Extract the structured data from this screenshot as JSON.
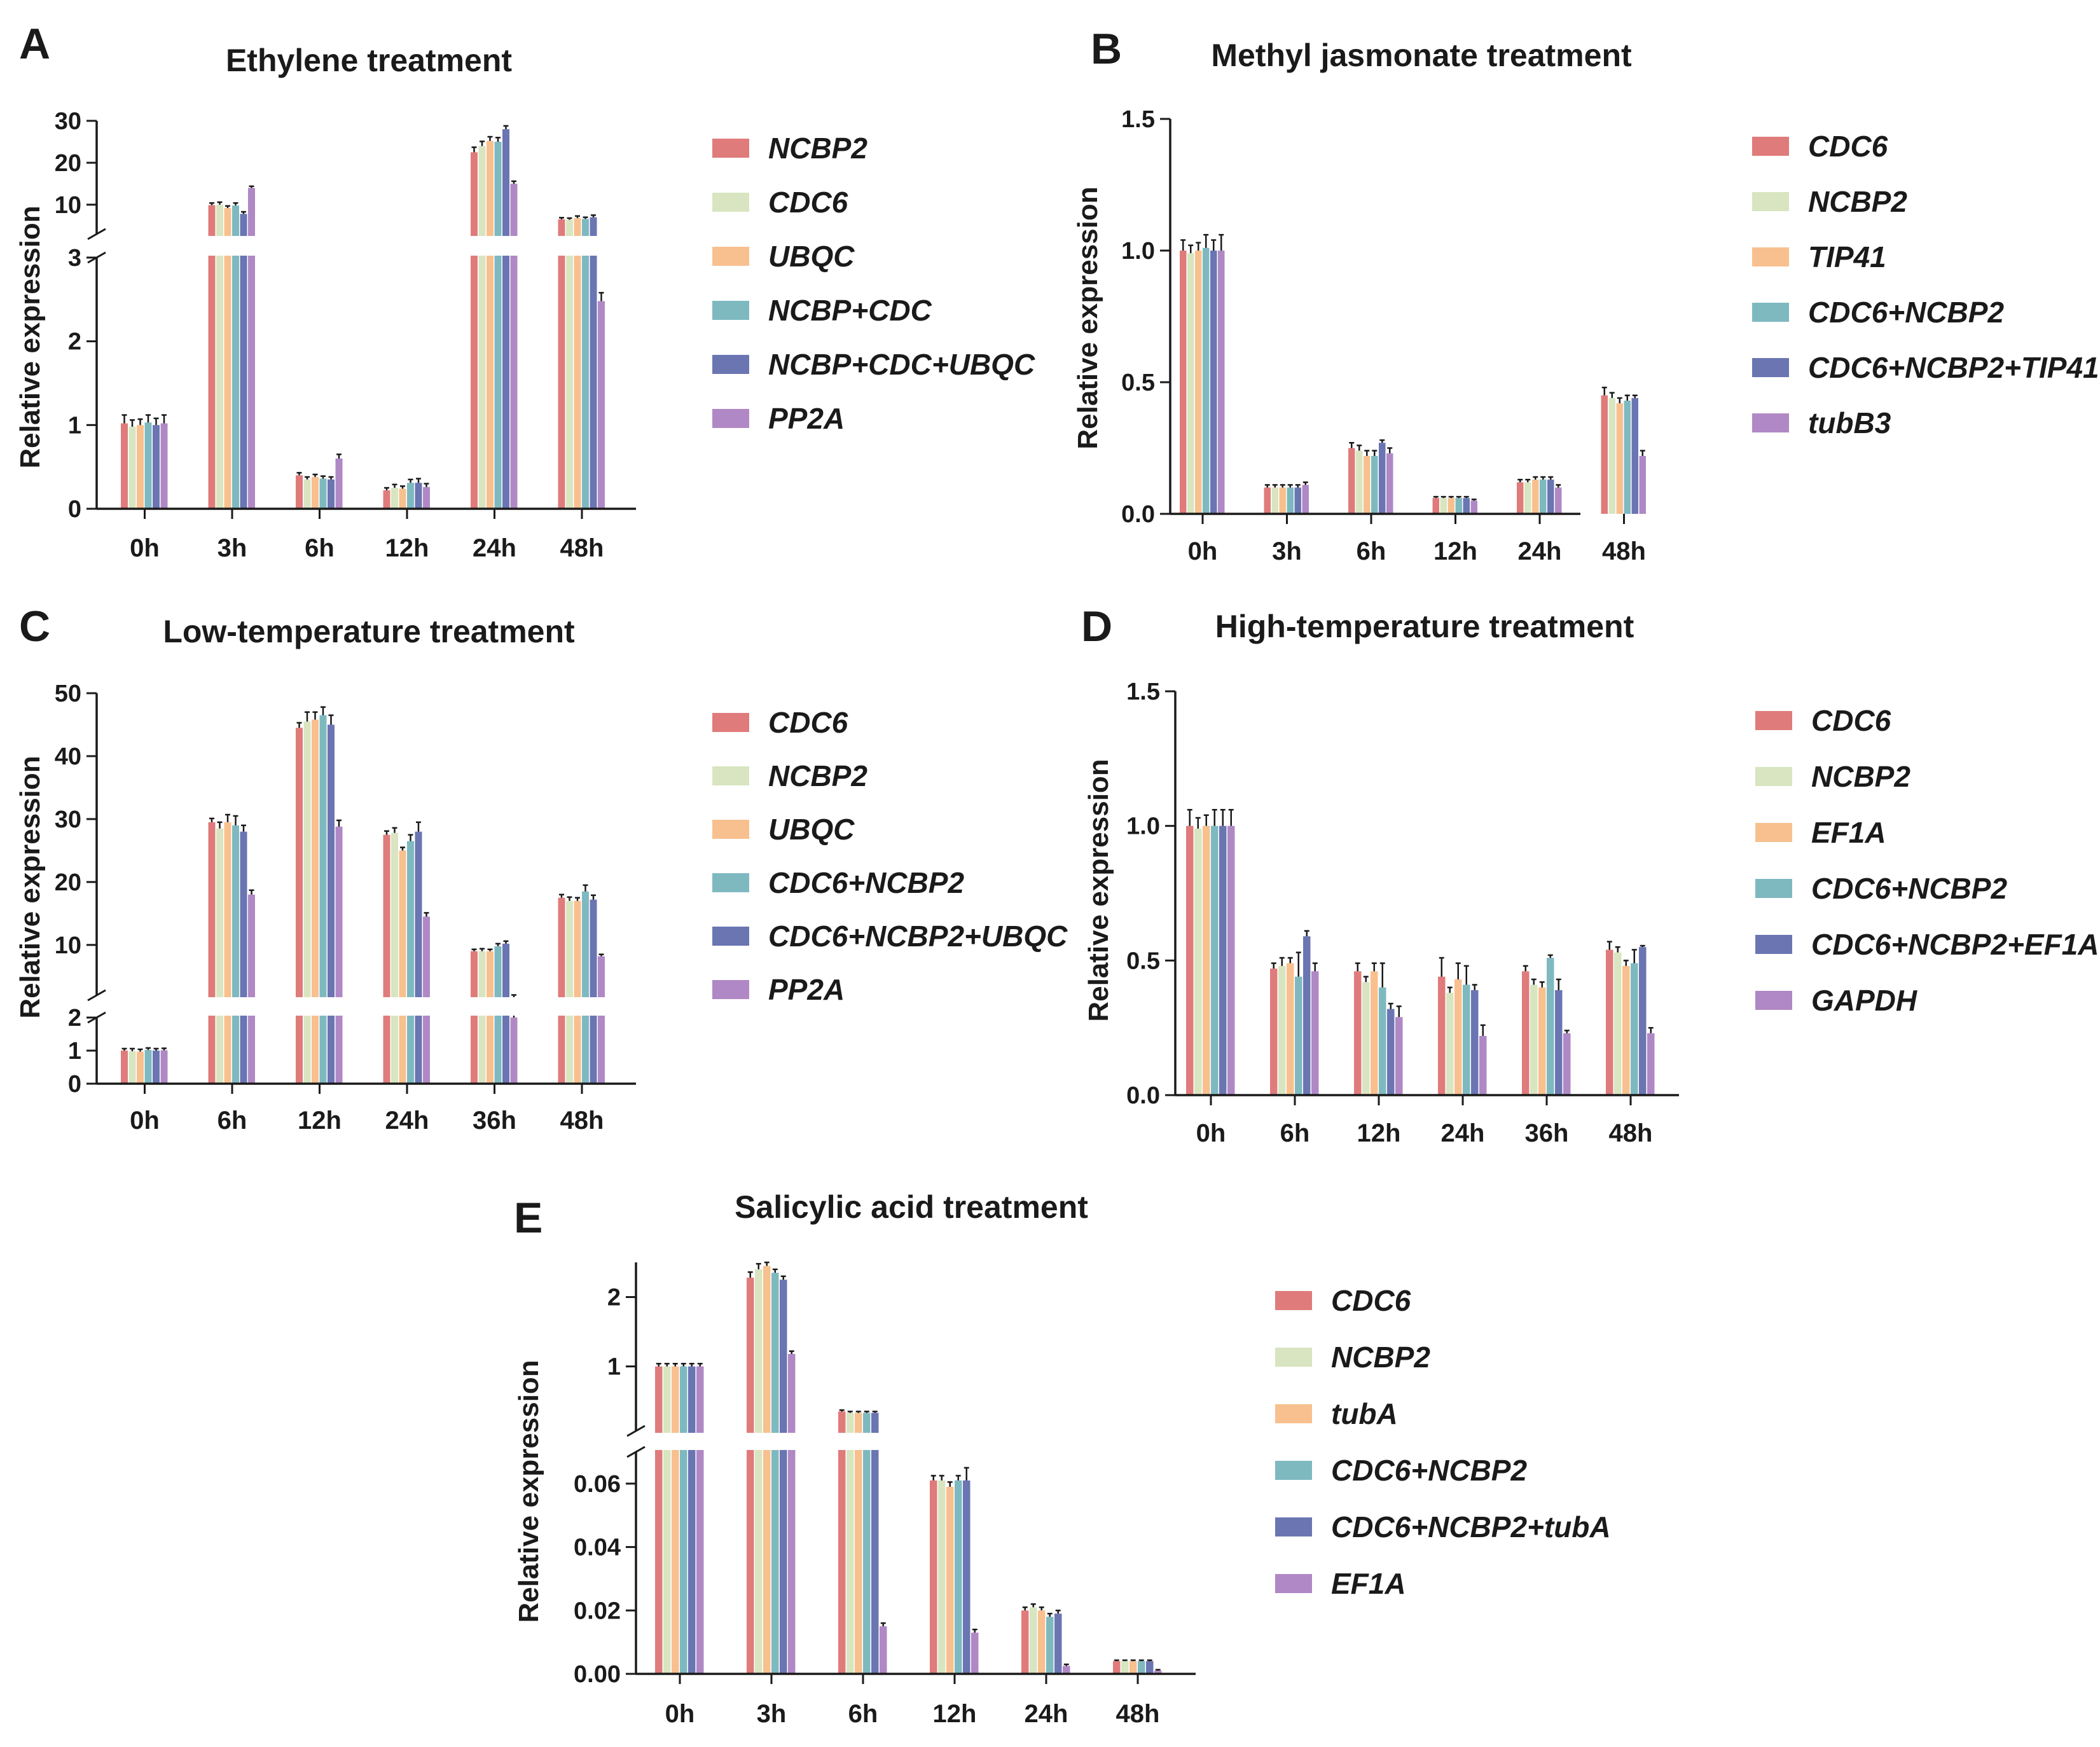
{
  "chart_data": [
    {
      "id": "A",
      "type": "bar",
      "panel_label": "A",
      "title": "Ethylene treatment",
      "xlabel": "",
      "ylabel": "Relative expression",
      "categories": [
        "0h",
        "3h",
        "6h",
        "12h",
        "24h",
        "48h"
      ],
      "broken_axis": {
        "lower": {
          "ylim": [
            0,
            3
          ],
          "ticks": [
            0,
            1,
            2,
            3
          ]
        },
        "upper": {
          "ylim": [
            3,
            30
          ],
          "ticks": [
            10,
            20,
            30
          ]
        }
      },
      "series": [
        {
          "name": "NCBP2",
          "color": "#E07B7B",
          "values": [
            1.02,
            9.9,
            0.4,
            0.22,
            22.5,
            6.5
          ],
          "errors": [
            0.1,
            0.5,
            0.03,
            0.03,
            1.2,
            0.4
          ]
        },
        {
          "name": "CDC6",
          "color": "#D8E5C0",
          "values": [
            0.98,
            10.0,
            0.35,
            0.25,
            24.0,
            6.4
          ],
          "errors": [
            0.08,
            0.6,
            0.03,
            0.04,
            1.1,
            0.4
          ]
        },
        {
          "name": "UBQC",
          "color": "#F8C08E",
          "values": [
            1.0,
            9.2,
            0.38,
            0.24,
            25.2,
            6.8
          ],
          "errors": [
            0.07,
            0.5,
            0.03,
            0.03,
            1.0,
            0.5
          ]
        },
        {
          "name": "NCBP+CDC",
          "color": "#7EB9C0",
          "values": [
            1.03,
            9.8,
            0.36,
            0.31,
            25.0,
            6.6
          ],
          "errors": [
            0.09,
            0.6,
            0.03,
            0.04,
            1.0,
            0.4
          ]
        },
        {
          "name": "NCBP+CDC+UBQC",
          "color": "#6A75B2",
          "values": [
            1.0,
            7.8,
            0.35,
            0.31,
            28.0,
            7.0
          ],
          "errors": [
            0.08,
            0.5,
            0.03,
            0.05,
            0.8,
            0.5
          ]
        },
        {
          "name": "PP2A",
          "color": "#B088C5",
          "values": [
            1.02,
            14.0,
            0.6,
            0.26,
            15.0,
            2.48
          ],
          "errors": [
            0.1,
            0.4,
            0.05,
            0.04,
            0.6,
            0.1
          ]
        }
      ]
    },
    {
      "id": "B",
      "type": "bar",
      "panel_label": "B",
      "title": "Methyl jasmonate treatment",
      "xlabel": "",
      "ylabel": "Relative expression",
      "categories": [
        "0h",
        "3h",
        "6h",
        "12h",
        "24h",
        "48h"
      ],
      "ylim": [
        0,
        1.5
      ],
      "yticks": [
        "0.0",
        "0.5",
        "1.0",
        "1.5"
      ],
      "series": [
        {
          "name": "CDC6",
          "color": "#E07B7B",
          "values": [
            1.0,
            0.1,
            0.25,
            0.06,
            0.12,
            0.45
          ],
          "errors": [
            0.04,
            0.01,
            0.02,
            0.005,
            0.01,
            0.03
          ]
        },
        {
          "name": "NCBP2",
          "color": "#D8E5C0",
          "values": [
            0.99,
            0.1,
            0.24,
            0.06,
            0.12,
            0.44
          ],
          "errors": [
            0.03,
            0.01,
            0.02,
            0.005,
            0.01,
            0.02
          ]
        },
        {
          "name": "TIP41",
          "color": "#F8C08E",
          "values": [
            1.0,
            0.1,
            0.22,
            0.06,
            0.13,
            0.42
          ],
          "errors": [
            0.03,
            0.01,
            0.02,
            0.005,
            0.01,
            0.02
          ]
        },
        {
          "name": "CDC6+NCBP2",
          "color": "#7EB9C0",
          "values": [
            1.01,
            0.1,
            0.22,
            0.06,
            0.13,
            0.43
          ],
          "errors": [
            0.05,
            0.01,
            0.02,
            0.005,
            0.01,
            0.02
          ]
        },
        {
          "name": "CDC6+NCBP2+TIP41",
          "color": "#6A75B2",
          "values": [
            1.0,
            0.1,
            0.27,
            0.06,
            0.13,
            0.44
          ],
          "errors": [
            0.04,
            0.01,
            0.01,
            0.005,
            0.01,
            0.01
          ]
        },
        {
          "name": "tubB3",
          "color": "#B088C5",
          "values": [
            1.0,
            0.11,
            0.23,
            0.05,
            0.1,
            0.22
          ],
          "errors": [
            0.06,
            0.01,
            0.02,
            0.005,
            0.01,
            0.02
          ]
        }
      ]
    },
    {
      "id": "C",
      "type": "bar",
      "panel_label": "C",
      "title": "Low-temperature treatment",
      "xlabel": "",
      "ylabel": "Relative expression",
      "categories": [
        "0h",
        "6h",
        "12h",
        "24h",
        "36h",
        "48h"
      ],
      "broken_axis": {
        "lower": {
          "ylim": [
            0,
            2
          ],
          "ticks": [
            0,
            1,
            2
          ]
        },
        "upper": {
          "ylim": [
            2,
            50
          ],
          "ticks": [
            10,
            20,
            30,
            40,
            50
          ]
        }
      },
      "series": [
        {
          "name": "CDC6",
          "color": "#E07B7B",
          "values": [
            1.0,
            29.5,
            44.5,
            27.5,
            9.0,
            17.5
          ],
          "errors": [
            0.06,
            0.6,
            0.8,
            0.6,
            0.3,
            0.5
          ]
        },
        {
          "name": "NCBP2",
          "color": "#D8E5C0",
          "values": [
            0.98,
            28.5,
            45.5,
            27.8,
            9.0,
            17.0
          ],
          "errors": [
            0.08,
            1.0,
            1.5,
            0.8,
            0.4,
            0.6
          ]
        },
        {
          "name": "UBQC",
          "color": "#F8C08E",
          "values": [
            0.97,
            29.5,
            45.8,
            25.0,
            9.0,
            17.0
          ],
          "errors": [
            0.07,
            1.2,
            1.2,
            0.5,
            0.3,
            0.5
          ]
        },
        {
          "name": "CDC6+NCBP2",
          "color": "#7EB9C0",
          "values": [
            1.02,
            29.0,
            46.5,
            26.5,
            9.8,
            18.5
          ],
          "errors": [
            0.06,
            1.5,
            1.3,
            1.0,
            0.4,
            1.0
          ]
        },
        {
          "name": "CDC6+NCBP2+UBQC",
          "color": "#6A75B2",
          "values": [
            1.0,
            28.0,
            45.0,
            28.0,
            10.2,
            17.2
          ],
          "errors": [
            0.06,
            1.0,
            1.5,
            1.5,
            0.4,
            0.7
          ]
        },
        {
          "name": "PP2A",
          "color": "#B088C5",
          "values": [
            1.01,
            18.0,
            28.8,
            14.5,
            2.0,
            8.2
          ],
          "errors": [
            0.06,
            0.7,
            1.0,
            0.6,
            0.05,
            0.3
          ]
        }
      ]
    },
    {
      "id": "D",
      "type": "bar",
      "panel_label": "D",
      "title": "High-temperature treatment",
      "xlabel": "",
      "ylabel": "Relative expression",
      "categories": [
        "0h",
        "6h",
        "12h",
        "24h",
        "36h",
        "48h"
      ],
      "ylim": [
        0,
        1.5
      ],
      "yticks": [
        "0.0",
        "0.5",
        "1.0",
        "1.5"
      ],
      "series": [
        {
          "name": "CDC6",
          "color": "#E07B7B",
          "values": [
            1.0,
            0.47,
            0.46,
            0.44,
            0.46,
            0.54
          ],
          "errors": [
            0.06,
            0.02,
            0.03,
            0.07,
            0.02,
            0.03
          ]
        },
        {
          "name": "NCBP2",
          "color": "#D8E5C0",
          "values": [
            0.99,
            0.48,
            0.42,
            0.38,
            0.41,
            0.53
          ],
          "errors": [
            0.04,
            0.03,
            0.02,
            0.02,
            0.02,
            0.02
          ]
        },
        {
          "name": "EF1A",
          "color": "#F8C08E",
          "values": [
            1.0,
            0.49,
            0.46,
            0.43,
            0.4,
            0.48
          ],
          "errors": [
            0.04,
            0.02,
            0.03,
            0.06,
            0.02,
            0.02
          ]
        },
        {
          "name": "CDC6+NCBP2",
          "color": "#7EB9C0",
          "values": [
            1.0,
            0.44,
            0.4,
            0.41,
            0.51,
            0.49
          ],
          "errors": [
            0.06,
            0.09,
            0.09,
            0.07,
            0.01,
            0.05
          ]
        },
        {
          "name": "CDC6+NCBP2+EF1A",
          "color": "#6A75B2",
          "values": [
            1.0,
            0.59,
            0.32,
            0.39,
            0.39,
            0.55
          ],
          "errors": [
            0.06,
            0.02,
            0.02,
            0.02,
            0.04,
            0.005
          ]
        },
        {
          "name": "GAPDH",
          "color": "#B088C5",
          "values": [
            1.0,
            0.46,
            0.29,
            0.22,
            0.23,
            0.23
          ],
          "errors": [
            0.06,
            0.03,
            0.04,
            0.04,
            0.01,
            0.02
          ]
        }
      ]
    },
    {
      "id": "E",
      "type": "bar",
      "panel_label": "E",
      "title": "Salicylic acid treatment",
      "xlabel": "",
      "ylabel": "Relative expression",
      "categories": [
        "0h",
        "3h",
        "6h",
        "12h",
        "24h",
        "48h"
      ],
      "broken_axis": {
        "lower": {
          "ylim": [
            0,
            0.07
          ],
          "ticks": [
            "0.00",
            "0.02",
            "0.04",
            "0.06"
          ]
        },
        "upper": {
          "ylim": [
            0.07,
            2.5
          ],
          "ticks": [
            1,
            2
          ]
        }
      },
      "series": [
        {
          "name": "CDC6",
          "color": "#E07B7B",
          "values": [
            1.0,
            2.28,
            0.35,
            0.061,
            0.02,
            0.004
          ],
          "errors": [
            0.04,
            0.08,
            0.02,
            0.0015,
            0.001,
            0.0003
          ]
        },
        {
          "name": "NCBP2",
          "color": "#D8E5C0",
          "values": [
            1.0,
            2.4,
            0.33,
            0.061,
            0.021,
            0.004
          ],
          "errors": [
            0.04,
            0.08,
            0.02,
            0.0015,
            0.001,
            0.0003
          ]
        },
        {
          "name": "tubA",
          "color": "#F8C08E",
          "values": [
            1.0,
            2.45,
            0.33,
            0.059,
            0.02,
            0.004
          ],
          "errors": [
            0.04,
            0.05,
            0.02,
            0.0015,
            0.001,
            0.0003
          ]
        },
        {
          "name": "CDC6+NCBP2",
          "color": "#7EB9C0",
          "values": [
            1.0,
            2.35,
            0.33,
            0.061,
            0.018,
            0.004
          ],
          "errors": [
            0.04,
            0.05,
            0.02,
            0.0015,
            0.001,
            0.0003
          ]
        },
        {
          "name": "CDC6+NCBP2+tubA",
          "color": "#6A75B2",
          "values": [
            1.0,
            2.25,
            0.33,
            0.061,
            0.019,
            0.004
          ],
          "errors": [
            0.04,
            0.05,
            0.02,
            0.004,
            0.001,
            0.0003
          ]
        },
        {
          "name": "EF1A",
          "color": "#B088C5",
          "values": [
            1.0,
            1.18,
            0.015,
            0.013,
            0.0025,
            0.001
          ],
          "errors": [
            0.04,
            0.04,
            0.001,
            0.001,
            0.0005,
            0.0003
          ]
        }
      ]
    }
  ]
}
